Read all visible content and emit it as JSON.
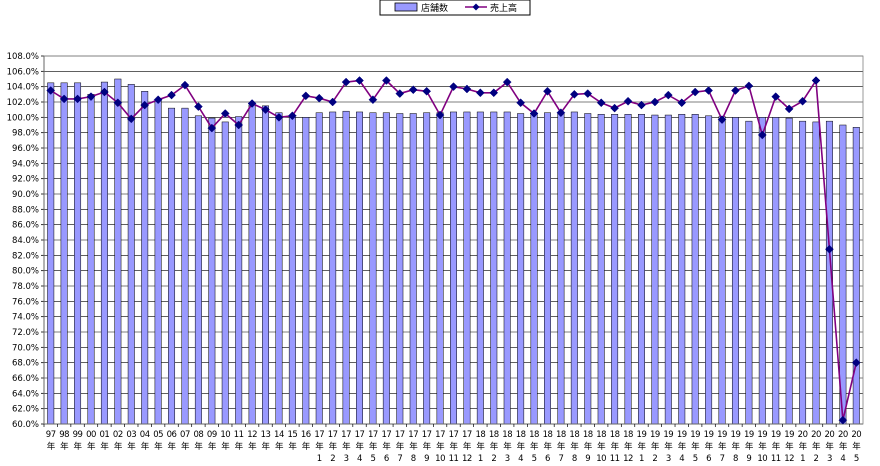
{
  "chart_data": {
    "type": "bar",
    "ylim": [
      0.6,
      1.08
    ],
    "y_tick_step": 0.02,
    "y_tick_format": "percent_1dp",
    "grid": true,
    "legend_position": "top-center",
    "legend": [
      {
        "name": "店舗数",
        "kind": "bar",
        "color": "#9999ff"
      },
      {
        "name": "売上高",
        "kind": "line",
        "color": "#800080",
        "marker_color": "#000080"
      }
    ],
    "categories": [
      [
        "97",
        "年",
        ""
      ],
      [
        "98",
        "年",
        ""
      ],
      [
        "99",
        "年",
        ""
      ],
      [
        "00",
        "年",
        ""
      ],
      [
        "01",
        "年",
        ""
      ],
      [
        "02",
        "年",
        ""
      ],
      [
        "03",
        "年",
        ""
      ],
      [
        "04",
        "年",
        ""
      ],
      [
        "05",
        "年",
        ""
      ],
      [
        "06",
        "年",
        ""
      ],
      [
        "07",
        "年",
        ""
      ],
      [
        "08",
        "年",
        ""
      ],
      [
        "09",
        "年",
        ""
      ],
      [
        "10",
        "年",
        ""
      ],
      [
        "11",
        "年",
        ""
      ],
      [
        "12",
        "年",
        ""
      ],
      [
        "13",
        "年",
        ""
      ],
      [
        "14",
        "年",
        ""
      ],
      [
        "15",
        "年",
        ""
      ],
      [
        "16",
        "年",
        ""
      ],
      [
        "17",
        "年",
        "1"
      ],
      [
        "17",
        "年",
        "2"
      ],
      [
        "17",
        "年",
        "3"
      ],
      [
        "17",
        "年",
        "4"
      ],
      [
        "17",
        "年",
        "5"
      ],
      [
        "17",
        "年",
        "6"
      ],
      [
        "17",
        "年",
        "7"
      ],
      [
        "17",
        "年",
        "8"
      ],
      [
        "17",
        "年",
        "9"
      ],
      [
        "17",
        "年",
        "10"
      ],
      [
        "17",
        "年",
        "11"
      ],
      [
        "17",
        "年",
        "12"
      ],
      [
        "18",
        "年",
        "1"
      ],
      [
        "18",
        "年",
        "2"
      ],
      [
        "18",
        "年",
        "3"
      ],
      [
        "18",
        "年",
        "4"
      ],
      [
        "18",
        "年",
        "5"
      ],
      [
        "18",
        "年",
        "6"
      ],
      [
        "18",
        "年",
        "7"
      ],
      [
        "18",
        "年",
        "8"
      ],
      [
        "18",
        "年",
        "9"
      ],
      [
        "18",
        "年",
        "10"
      ],
      [
        "18",
        "年",
        "11"
      ],
      [
        "18",
        "年",
        "12"
      ],
      [
        "19",
        "年",
        "1"
      ],
      [
        "19",
        "年",
        "2"
      ],
      [
        "19",
        "年",
        "3"
      ],
      [
        "19",
        "年",
        "4"
      ],
      [
        "19",
        "年",
        "5"
      ],
      [
        "19",
        "年",
        "6"
      ],
      [
        "19",
        "年",
        "7"
      ],
      [
        "19",
        "年",
        "8"
      ],
      [
        "19",
        "年",
        "9"
      ],
      [
        "19",
        "年",
        "10"
      ],
      [
        "19",
        "年",
        "11"
      ],
      [
        "19",
        "年",
        "12"
      ],
      [
        "20",
        "年",
        "1"
      ],
      [
        "20",
        "年",
        "2"
      ],
      [
        "20",
        "年",
        "3"
      ],
      [
        "20",
        "年",
        "4"
      ],
      [
        "20",
        "年",
        "5"
      ]
    ],
    "series": [
      {
        "name": "店舗数",
        "kind": "bar",
        "values": [
          1.045,
          1.045,
          1.045,
          1.03,
          1.046,
          1.05,
          1.043,
          1.034,
          1.022,
          1.012,
          1.012,
          1.002,
          0.999,
          0.994,
          1.001,
          1.016,
          1.015,
          1.006,
          1.0,
          1.0,
          1.006,
          1.007,
          1.008,
          1.007,
          1.006,
          1.006,
          1.005,
          1.005,
          1.006,
          1.006,
          1.007,
          1.007,
          1.007,
          1.007,
          1.007,
          1.005,
          1.005,
          1.006,
          1.005,
          1.007,
          1.005,
          1.004,
          1.004,
          1.004,
          1.004,
          1.003,
          1.003,
          1.004,
          1.004,
          1.002,
          1.001,
          1.0,
          0.995,
          1.0,
          1.0,
          0.999,
          0.995,
          0.994,
          0.995,
          0.99,
          0.987
        ]
      },
      {
        "name": "売上高",
        "kind": "line",
        "values": [
          1.035,
          1.024,
          1.024,
          1.027,
          1.033,
          1.019,
          0.998,
          1.016,
          1.023,
          1.029,
          1.042,
          1.014,
          0.986,
          1.005,
          0.99,
          1.018,
          1.01,
          1.0,
          1.002,
          1.028,
          1.025,
          1.02,
          1.046,
          1.048,
          1.023,
          1.048,
          1.031,
          1.036,
          1.034,
          1.003,
          1.04,
          1.037,
          1.032,
          1.032,
          1.046,
          1.019,
          1.005,
          1.034,
          1.006,
          1.03,
          1.031,
          1.019,
          1.012,
          1.021,
          1.016,
          1.02,
          1.029,
          1.019,
          1.033,
          1.035,
          0.997,
          1.035,
          1.041,
          0.977,
          1.027,
          1.011,
          1.021,
          1.048,
          0.828,
          0.605,
          0.68
        ]
      }
    ]
  }
}
